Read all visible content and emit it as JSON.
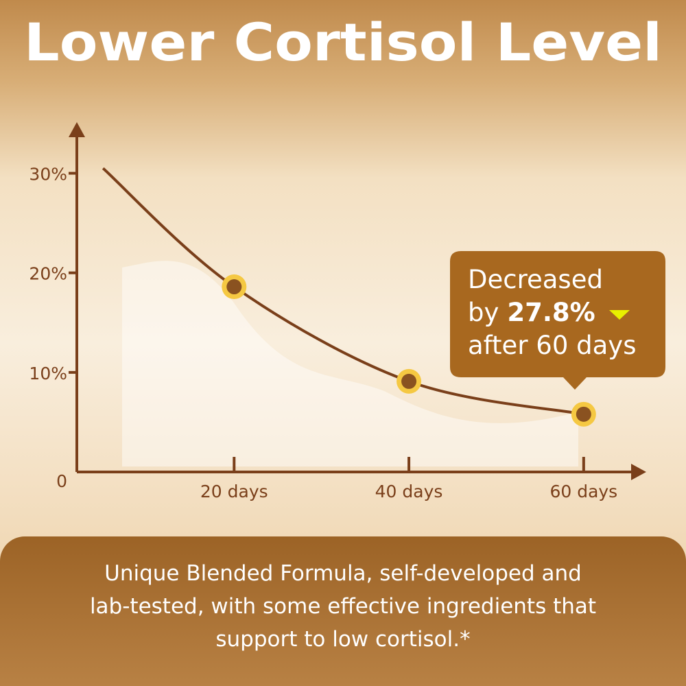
{
  "chart_data": {
    "type": "line",
    "title": "Lower Cortisol Level",
    "x": [
      5,
      20,
      40,
      60
    ],
    "values": [
      30.5,
      18.6,
      9.1,
      5.8
    ],
    "color": "#7a3f1a",
    "marker_color": "#f5c842",
    "xlim": [
      2,
      67
    ],
    "ylim": [
      0,
      35
    ],
    "xticks": [
      {
        "value": 20,
        "label": "20 days"
      },
      {
        "value": 40,
        "label": "40 days"
      },
      {
        "value": 60,
        "label": "60 days"
      }
    ],
    "yticks": [
      0,
      {
        "value": 10,
        "label": "10%"
      },
      {
        "value": 20,
        "label": "20%"
      },
      {
        "value": 30,
        "label": "30%"
      }
    ],
    "annotation": {
      "line1": "Decreased",
      "prefix": "by",
      "value": "27.8%",
      "line3": "after 60 days"
    },
    "footnote": [
      "Unique Blended Formula, self-developed and",
      "lab-tested, with some effective ingredients that",
      "support to low cortisol.*"
    ]
  }
}
